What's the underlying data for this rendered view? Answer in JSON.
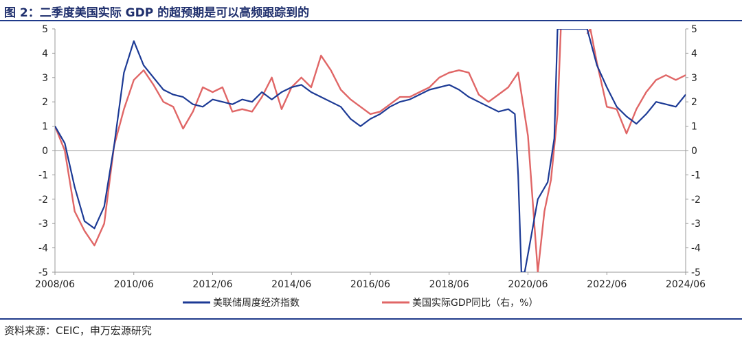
{
  "title": "图 2：二季度美国实际 GDP 的超预期是可以高频跟踪到的",
  "source": "资料来源：CEIC，申万宏源研究",
  "colors": {
    "wei": "#1c3a95",
    "gdp": "#e06666",
    "rule": "#1f3a8a",
    "axis": "#999999"
  },
  "chart_data": {
    "type": "line",
    "title": "图 2：二季度美国实际 GDP 的超预期是可以高频跟踪到的",
    "x_ticks": [
      "2008/06",
      "2010/06",
      "2012/06",
      "2014/06",
      "2016/06",
      "2018/06",
      "2020/06",
      "2022/06",
      "2024/06"
    ],
    "xlim": [
      "2008/06",
      "2024/06"
    ],
    "ylim_left": [
      -5,
      5
    ],
    "ylim_right": [
      -5,
      5
    ],
    "y_ticks": [
      "5",
      "4",
      "3",
      "2",
      "1",
      "0",
      "-1",
      "-2",
      "-3",
      "-4",
      "-5"
    ],
    "legend_position": "bottom",
    "series": [
      {
        "name": "美联储周度经济指数",
        "axis": "left",
        "points": [
          [
            "2008-06",
            1.0
          ],
          [
            "2008-09",
            0.3
          ],
          [
            "2008-12",
            -1.5
          ],
          [
            "2009-03",
            -2.9
          ],
          [
            "2009-06",
            -3.2
          ],
          [
            "2009-09",
            -2.3
          ],
          [
            "2009-12",
            0.2
          ],
          [
            "2010-03",
            3.2
          ],
          [
            "2010-06",
            4.5
          ],
          [
            "2010-09",
            3.5
          ],
          [
            "2010-12",
            3.0
          ],
          [
            "2011-03",
            2.5
          ],
          [
            "2011-06",
            2.3
          ],
          [
            "2011-09",
            2.2
          ],
          [
            "2011-12",
            1.9
          ],
          [
            "2012-03",
            1.8
          ],
          [
            "2012-06",
            2.1
          ],
          [
            "2012-09",
            2.0
          ],
          [
            "2012-12",
            1.9
          ],
          [
            "2013-03",
            2.1
          ],
          [
            "2013-06",
            2.0
          ],
          [
            "2013-09",
            2.4
          ],
          [
            "2013-12",
            2.1
          ],
          [
            "2014-03",
            2.4
          ],
          [
            "2014-06",
            2.6
          ],
          [
            "2014-09",
            2.7
          ],
          [
            "2014-12",
            2.4
          ],
          [
            "2015-03",
            2.2
          ],
          [
            "2015-06",
            2.0
          ],
          [
            "2015-09",
            1.8
          ],
          [
            "2015-12",
            1.3
          ],
          [
            "2016-03",
            1.0
          ],
          [
            "2016-06",
            1.3
          ],
          [
            "2016-09",
            1.5
          ],
          [
            "2016-12",
            1.8
          ],
          [
            "2017-03",
            2.0
          ],
          [
            "2017-06",
            2.1
          ],
          [
            "2017-09",
            2.3
          ],
          [
            "2017-12",
            2.5
          ],
          [
            "2018-03",
            2.6
          ],
          [
            "2018-06",
            2.7
          ],
          [
            "2018-09",
            2.5
          ],
          [
            "2018-12",
            2.2
          ],
          [
            "2019-03",
            2.0
          ],
          [
            "2019-06",
            1.8
          ],
          [
            "2019-09",
            1.6
          ],
          [
            "2019-12",
            1.7
          ],
          [
            "2020-02",
            1.5
          ],
          [
            "2020-03",
            -1.0
          ],
          [
            "2020-04",
            -5.0
          ],
          [
            "2020-05",
            -5.0
          ],
          [
            "2020-07",
            -3.5
          ],
          [
            "2020-09",
            -2.0
          ],
          [
            "2020-12",
            -1.3
          ],
          [
            "2021-02",
            0.5
          ],
          [
            "2021-03",
            5.0
          ],
          [
            "2021-12",
            5.0
          ],
          [
            "2022-03",
            3.5
          ],
          [
            "2022-06",
            2.6
          ],
          [
            "2022-09",
            1.8
          ],
          [
            "2022-12",
            1.4
          ],
          [
            "2023-03",
            1.1
          ],
          [
            "2023-06",
            1.5
          ],
          [
            "2023-09",
            2.0
          ],
          [
            "2023-12",
            1.9
          ],
          [
            "2024-03",
            1.8
          ],
          [
            "2024-06",
            2.3
          ]
        ]
      },
      {
        "name": "美国实际GDP同比（右，%）",
        "axis": "right",
        "points": [
          [
            "2008-06",
            1.0
          ],
          [
            "2008-09",
            0.0
          ],
          [
            "2008-12",
            -2.5
          ],
          [
            "2009-03",
            -3.3
          ],
          [
            "2009-06",
            -3.9
          ],
          [
            "2009-09",
            -3.0
          ],
          [
            "2009-12",
            0.2
          ],
          [
            "2010-03",
            1.7
          ],
          [
            "2010-06",
            2.9
          ],
          [
            "2010-09",
            3.3
          ],
          [
            "2010-12",
            2.7
          ],
          [
            "2011-03",
            2.0
          ],
          [
            "2011-06",
            1.8
          ],
          [
            "2011-09",
            0.9
          ],
          [
            "2011-12",
            1.6
          ],
          [
            "2012-03",
            2.6
          ],
          [
            "2012-06",
            2.4
          ],
          [
            "2012-09",
            2.6
          ],
          [
            "2012-12",
            1.6
          ],
          [
            "2013-03",
            1.7
          ],
          [
            "2013-06",
            1.6
          ],
          [
            "2013-09",
            2.2
          ],
          [
            "2013-12",
            3.0
          ],
          [
            "2014-03",
            1.7
          ],
          [
            "2014-06",
            2.6
          ],
          [
            "2014-09",
            3.0
          ],
          [
            "2014-12",
            2.6
          ],
          [
            "2015-03",
            3.9
          ],
          [
            "2015-06",
            3.3
          ],
          [
            "2015-09",
            2.5
          ],
          [
            "2015-12",
            2.1
          ],
          [
            "2016-03",
            1.8
          ],
          [
            "2016-06",
            1.5
          ],
          [
            "2016-09",
            1.6
          ],
          [
            "2016-12",
            1.9
          ],
          [
            "2017-03",
            2.2
          ],
          [
            "2017-06",
            2.2
          ],
          [
            "2017-09",
            2.4
          ],
          [
            "2017-12",
            2.6
          ],
          [
            "2018-03",
            3.0
          ],
          [
            "2018-06",
            3.2
          ],
          [
            "2018-09",
            3.3
          ],
          [
            "2018-12",
            3.2
          ],
          [
            "2019-03",
            2.3
          ],
          [
            "2019-06",
            2.0
          ],
          [
            "2019-09",
            2.3
          ],
          [
            "2019-12",
            2.6
          ],
          [
            "2020-03",
            3.2
          ],
          [
            "2020-06",
            0.6
          ],
          [
            "2020-09",
            -5.0
          ],
          [
            "2020-11",
            -2.5
          ],
          [
            "2021-01",
            -1.2
          ],
          [
            "2021-03",
            1.5
          ],
          [
            "2021-04",
            5.0
          ]
        ],
        "points_segment2": [
          [
            "2021-12",
            4.8
          ],
          [
            "2022-01",
            5.0
          ],
          [
            "2022-03",
            3.6
          ],
          [
            "2022-06",
            1.8
          ],
          [
            "2022-09",
            1.7
          ],
          [
            "2022-12",
            0.7
          ],
          [
            "2023-03",
            1.7
          ],
          [
            "2023-06",
            2.4
          ],
          [
            "2023-09",
            2.9
          ],
          [
            "2023-12",
            3.1
          ],
          [
            "2024-03",
            2.9
          ],
          [
            "2024-06",
            3.1
          ]
        ]
      }
    ]
  }
}
